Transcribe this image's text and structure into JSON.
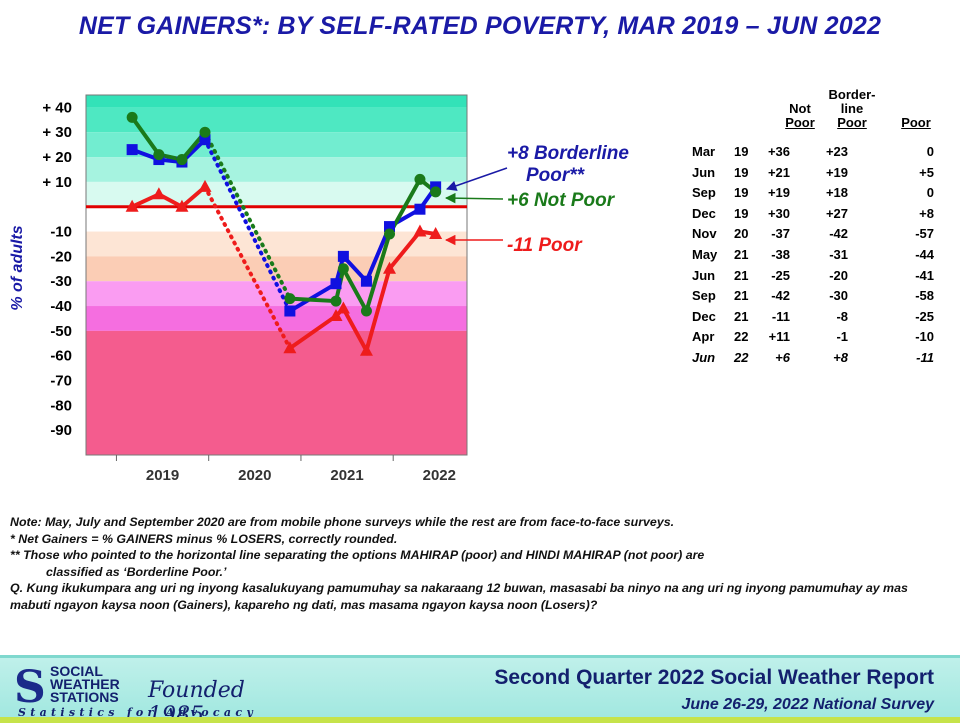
{
  "title": "NET GAINERS*: BY SELF-RATED POVERTY, MAR 2019 – JUN 2022",
  "chart_data": {
    "type": "line",
    "ylabel": "% of adults",
    "ylim": [
      -100,
      45
    ],
    "y_ticks": [
      "+ 40",
      "+ 30",
      "+ 20",
      "+ 10",
      "-10",
      "-20",
      "-30",
      "-40",
      "-50",
      "-60",
      "-70",
      "-80",
      "-90"
    ],
    "x_ticks": [
      "2019",
      "2020",
      "2021",
      "2022"
    ],
    "x": [
      "Mar 19",
      "Jun 19",
      "Sep 19",
      "Dec 19",
      "Nov 20",
      "May 21",
      "Jun 21",
      "Sep 21",
      "Dec 21",
      "Apr 22",
      "Jun 22"
    ],
    "series": [
      {
        "name": "Not Poor",
        "color": "#1a7a1a",
        "marker": "circle",
        "values": [
          36,
          21,
          19,
          30,
          -37,
          -38,
          -25,
          -42,
          -11,
          11,
          6
        ]
      },
      {
        "name": "Borderline Poor",
        "color": "#1010e0",
        "marker": "square",
        "values": [
          23,
          19,
          18,
          27,
          -42,
          -31,
          -20,
          -30,
          -8,
          -1,
          8
        ]
      },
      {
        "name": "Poor",
        "color": "#ee1c1c",
        "marker": "triangle",
        "values": [
          0,
          5,
          0,
          8,
          -57,
          -44,
          -41,
          -58,
          -25,
          -10,
          -11
        ]
      }
    ],
    "annotations": [
      {
        "text_line1": "+8 Borderline",
        "text_line2": "Poor**",
        "color": "#1a1aa6"
      },
      {
        "text": "+6 Not Poor",
        "color": "#1a7a1a"
      },
      {
        "text": "-11 Poor",
        "color": "#ee1c1c"
      }
    ]
  },
  "table": {
    "headers": {
      "not_line1": "Not",
      "not_line2": "Poor",
      "border_line1": "Border-",
      "border_line2": "line",
      "border_line3": "Poor",
      "poor": "Poor"
    },
    "rows": [
      {
        "month": "Mar",
        "year": "19",
        "not_poor": "+36",
        "borderline": "+23",
        "poor": "0"
      },
      {
        "month": "Jun",
        "year": "19",
        "not_poor": "+21",
        "borderline": "+19",
        "poor": "+5"
      },
      {
        "month": "Sep",
        "year": "19",
        "not_poor": "+19",
        "borderline": "+18",
        "poor": "0"
      },
      {
        "month": "Dec",
        "year": "19",
        "not_poor": "+30",
        "borderline": "+27",
        "poor": "+8"
      },
      {
        "month": "Nov",
        "year": "20",
        "not_poor": "-37",
        "borderline": "-42",
        "poor": "-57"
      },
      {
        "month": "May",
        "year": "21",
        "not_poor": "-38",
        "borderline": "-31",
        "poor": "-44"
      },
      {
        "month": "Jun",
        "year": "21",
        "not_poor": "-25",
        "borderline": "-20",
        "poor": "-41"
      },
      {
        "month": "Sep",
        "year": "21",
        "not_poor": "-42",
        "borderline": "-30",
        "poor": "-58"
      },
      {
        "month": "Dec",
        "year": "21",
        "not_poor": "-11",
        "borderline": "-8",
        "poor": "-25"
      },
      {
        "month": "Apr",
        "year": "22",
        "not_poor": "+11",
        "borderline": "-1",
        "poor": "-10"
      },
      {
        "month": "Jun",
        "year": "22",
        "not_poor": "+6",
        "borderline": "+8",
        "poor": "-11"
      }
    ]
  },
  "notes": {
    "line1": "Note: May, July and September 2020 are from mobile phone surveys while the rest are from face-to-face surveys.",
    "line2": "* Net Gainers = % GAINERS minus % LOSERS, correctly rounded.",
    "line3": "** Those who pointed to the horizontal line separating the options MAHIRAP (poor) and HINDI MAHIRAP (not poor) are",
    "line4": "classified as ‘Borderline Poor.’",
    "line5": "Q. Kung ikukumpara ang uri ng inyong kasalukuyang pamumuhay sa nakaraang 12 buwan, masasabi ba ninyo na ang uri ng inyong pamumuhay ay mas mabuti ngayon kaysa noon (Gainers), kapareho ng dati, mas masama ngayon kaysa noon (Losers)?"
  },
  "footer": {
    "org_line1": "SOCIAL",
    "org_line2": "WEATHER",
    "org_line3": "STATIONS",
    "founded": "Founded 1985",
    "tagline": "Statistics for Advocacy",
    "report": "Second Quarter 2022 Social Weather Report",
    "survey": "June 26-29, 2022 National Survey"
  }
}
